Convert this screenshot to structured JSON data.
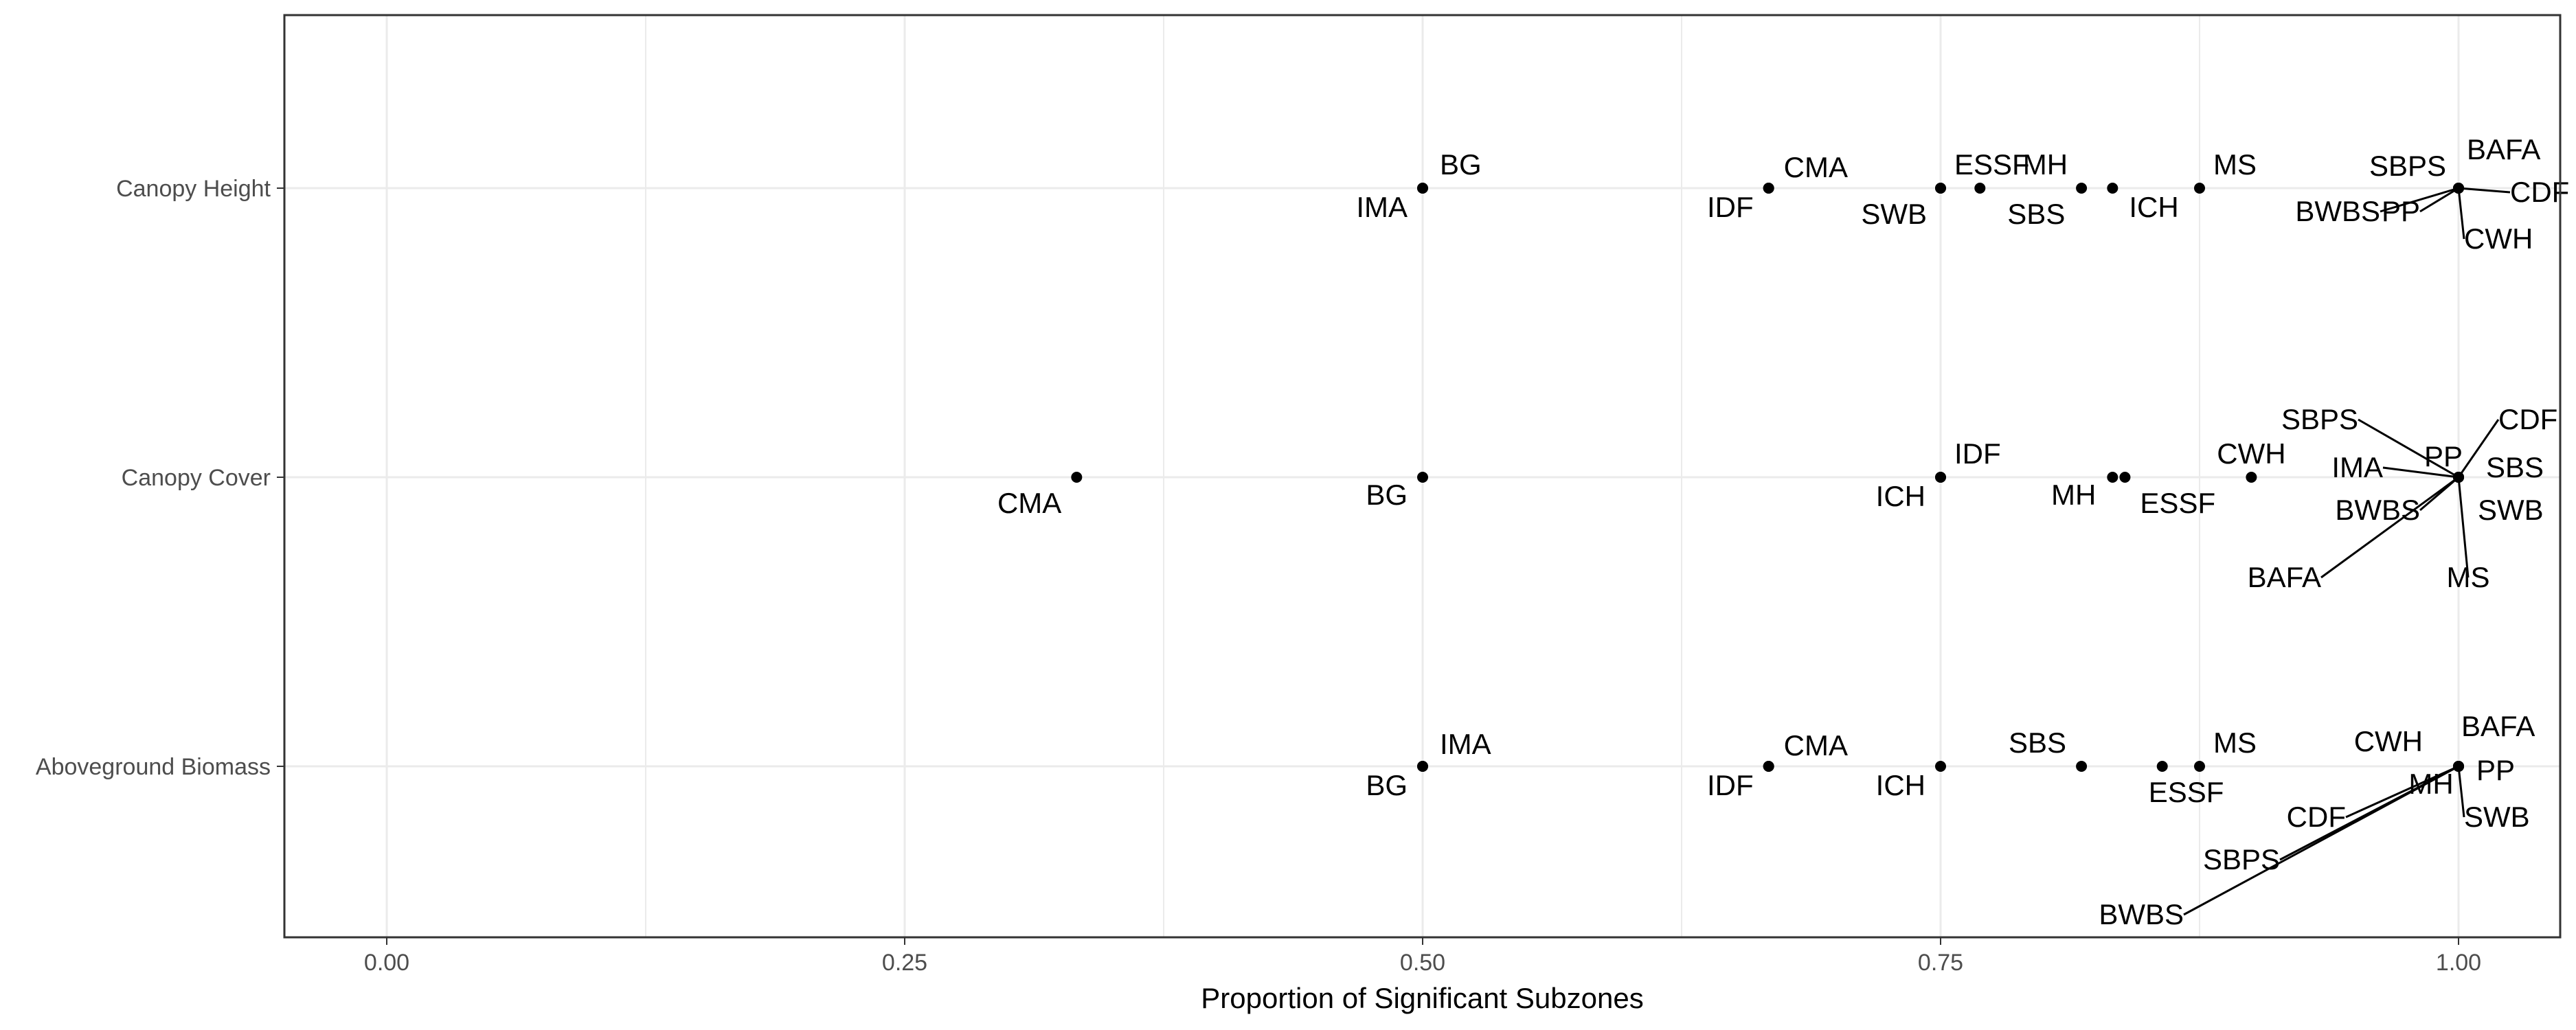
{
  "chart_data": {
    "type": "scatter",
    "title": "",
    "xlabel": "Proportion of Significant Subzones",
    "ylabel": "",
    "xlim": [
      -0.05,
      1.05
    ],
    "x_ticks": [
      0.0,
      0.25,
      0.5,
      0.75,
      1.0
    ],
    "x_tick_labels": [
      "0.00",
      "0.25",
      "0.50",
      "0.75",
      "1.00"
    ],
    "categories": [
      "Canopy Height",
      "Canopy Cover",
      "Aboveground Biomass"
    ],
    "grid": true,
    "legend": "none",
    "colors": {
      "point": "#000000",
      "grid": "#ebebeb",
      "panel_border": "#333333",
      "tick_text": "#4d4d4d"
    },
    "series": [
      {
        "category": "Canopy Height",
        "points": [
          {
            "label": "BG",
            "x": 0.5
          },
          {
            "label": "IMA",
            "x": 0.5
          },
          {
            "label": "CMA",
            "x": 0.667
          },
          {
            "label": "IDF",
            "x": 0.667
          },
          {
            "label": "ESSF",
            "x": 0.75
          },
          {
            "label": "SWB",
            "x": 0.75
          },
          {
            "label": "SBS",
            "x": 0.769
          },
          {
            "label": "MH",
            "x": 0.818
          },
          {
            "label": "ICH",
            "x": 0.833
          },
          {
            "label": "MS",
            "x": 0.875
          },
          {
            "label": "SBPS",
            "x": 1.0
          },
          {
            "label": "BAFA",
            "x": 1.0
          },
          {
            "label": "CDF",
            "x": 1.0
          },
          {
            "label": "CWH",
            "x": 1.0
          },
          {
            "label": "PP",
            "x": 1.0
          },
          {
            "label": "BWBS",
            "x": 1.0
          }
        ]
      },
      {
        "category": "Canopy Cover",
        "points": [
          {
            "label": "CMA",
            "x": 0.333
          },
          {
            "label": "BG",
            "x": 0.5
          },
          {
            "label": "IDF",
            "x": 0.75
          },
          {
            "label": "ICH",
            "x": 0.75
          },
          {
            "label": "MH",
            "x": 0.833
          },
          {
            "label": "ESSF",
            "x": 0.839
          },
          {
            "label": "CWH",
            "x": 0.9
          },
          {
            "label": "SBPS",
            "x": 1.0
          },
          {
            "label": "CDF",
            "x": 1.0
          },
          {
            "label": "PP",
            "x": 1.0
          },
          {
            "label": "IMA",
            "x": 1.0
          },
          {
            "label": "SBS",
            "x": 1.0
          },
          {
            "label": "BWBS",
            "x": 1.0
          },
          {
            "label": "SWB",
            "x": 1.0
          },
          {
            "label": "BAFA",
            "x": 1.0
          },
          {
            "label": "MS",
            "x": 1.0
          }
        ]
      },
      {
        "category": "Aboveground Biomass",
        "points": [
          {
            "label": "IMA",
            "x": 0.5
          },
          {
            "label": "BG",
            "x": 0.5
          },
          {
            "label": "CMA",
            "x": 0.667
          },
          {
            "label": "IDF",
            "x": 0.667
          },
          {
            "label": "ICH",
            "x": 0.75
          },
          {
            "label": "SBS",
            "x": 0.818
          },
          {
            "label": "ESSF",
            "x": 0.857
          },
          {
            "label": "MS",
            "x": 0.875
          },
          {
            "label": "CWH",
            "x": 1.0
          },
          {
            "label": "BAFA",
            "x": 1.0
          },
          {
            "label": "PP",
            "x": 1.0
          },
          {
            "label": "MH",
            "x": 1.0
          },
          {
            "label": "SWB",
            "x": 1.0
          },
          {
            "label": "CDF",
            "x": 1.0
          },
          {
            "label": "SBPS",
            "x": 1.0
          },
          {
            "label": "BWBS",
            "x": 1.0
          }
        ]
      }
    ]
  }
}
